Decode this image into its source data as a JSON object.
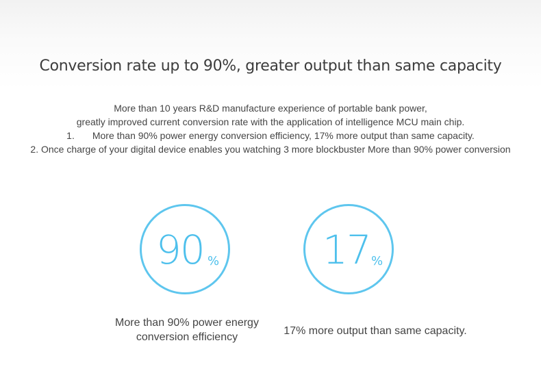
{
  "headline": "Conversion rate up to 90%, greater output than same capacity",
  "description": {
    "line1": "More than 10 years R&D manufacture experience of portable bank power,",
    "line2": "greatly improved current conversion rate with the application of intelligence MCU main chip.",
    "item1_number": "1.",
    "item1_text": "More than 90% power energy conversion efficiency, 17% more output than same capacity.",
    "item2": "2. Once charge of your digital device enables you watching 3 more blockbuster More than 90% power conversion"
  },
  "stats": [
    {
      "value": "90",
      "unit": "%",
      "caption_line1": "More than 90% power energy",
      "caption_line2": "conversion efficiency"
    },
    {
      "value": "17",
      "unit": "%",
      "caption": "17% more output than same capacity."
    }
  ],
  "colors": {
    "accent": "#5ec6ee",
    "text": "#444444",
    "headline": "#3c3c3c"
  }
}
